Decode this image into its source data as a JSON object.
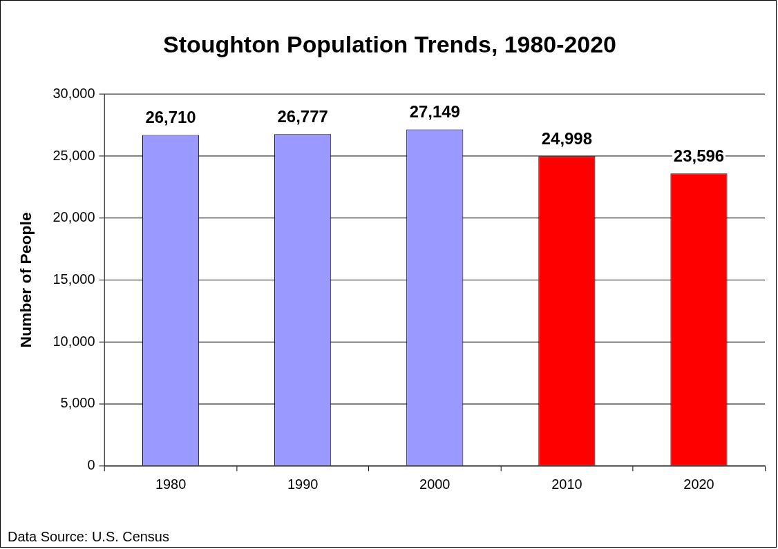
{
  "chart_data": {
    "type": "bar",
    "title": "Stoughton Population Trends, 1980-2020",
    "ylabel": "Number of People",
    "categories": [
      "1980",
      "1990",
      "2000",
      "2010",
      "2020"
    ],
    "values": [
      26710,
      26777,
      27149,
      24998,
      23596
    ],
    "colors": [
      "#9999ff",
      "#9999ff",
      "#9999ff",
      "#ff0000",
      "#ff0000"
    ],
    "ylim": [
      0,
      30000
    ],
    "yticks": [
      {
        "value": 0,
        "label": "0"
      },
      {
        "value": 5000,
        "label": "5,000"
      },
      {
        "value": 10000,
        "label": "10,000"
      },
      {
        "value": 15000,
        "label": "15,000"
      },
      {
        "value": 20000,
        "label": "20,000"
      },
      {
        "value": 25000,
        "label": "25,000"
      },
      {
        "value": 30000,
        "label": "30,000"
      }
    ],
    "grid": "y",
    "legend": false,
    "value_labels": [
      "26,710",
      "26,777",
      "27,149",
      "24,998",
      "23,596"
    ],
    "annotations": [
      "Data Source: U.S. Census"
    ]
  }
}
